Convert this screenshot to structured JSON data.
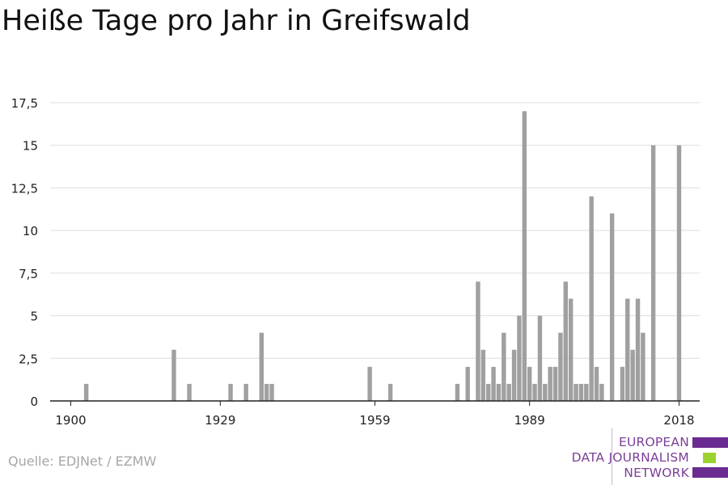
{
  "title": "Heiße Tage pro Jahr in Greifswald",
  "source": "Quelle: EDJNet / EZMW",
  "logo": {
    "lines": [
      "EUROPEAN",
      "DATA JOURNALISM",
      "NETWORK"
    ],
    "colors": {
      "text": "#7b3f98",
      "bar_purple": "#6a2c91",
      "bar_green": "#9bd22f"
    }
  },
  "colors": {
    "bar": "#a0a0a0",
    "grid": "#dddddd",
    "axis": "#222222",
    "tick_text": "#222222"
  },
  "chart_data": {
    "type": "bar",
    "title": "Heiße Tage pro Jahr in Greifswald",
    "xlabel": "",
    "ylabel": "",
    "xlim": [
      1896,
      2022
    ],
    "ylim": [
      0,
      17.5
    ],
    "x_ticks": [
      1900,
      1929,
      1959,
      1989,
      2018
    ],
    "y_ticks": [
      0,
      2.5,
      5,
      7.5,
      10,
      12.5,
      15,
      17.5
    ],
    "y_tick_labels": [
      "0",
      "2,5",
      "5",
      "7,5",
      "10",
      "12,5",
      "15",
      "17,5"
    ],
    "grid": true,
    "x": [
      1903,
      1920,
      1923,
      1931,
      1934,
      1937,
      1938,
      1939,
      1958,
      1962,
      1975,
      1977,
      1979,
      1980,
      1981,
      1982,
      1983,
      1984,
      1985,
      1986,
      1987,
      1988,
      1989,
      1990,
      1991,
      1992,
      1993,
      1994,
      1995,
      1996,
      1997,
      1998,
      1999,
      2000,
      2001,
      2002,
      2003,
      2004,
      2005,
      2006,
      2007,
      2008,
      2009,
      2010,
      2011,
      2012,
      2013,
      2014,
      2015,
      2016,
      2017,
      2018
    ],
    "values": [
      1,
      3,
      1,
      1,
      1,
      4,
      1,
      1,
      2,
      1,
      1,
      2,
      7,
      3,
      1,
      2,
      1,
      4,
      1,
      3,
      5,
      17,
      2,
      1,
      5,
      1,
      2,
      2,
      4,
      7,
      6,
      1,
      1,
      1,
      12,
      2,
      1,
      0,
      11,
      0,
      2,
      6,
      3,
      6,
      4,
      0,
      15,
      0,
      0,
      0,
      0,
      15
    ]
  }
}
